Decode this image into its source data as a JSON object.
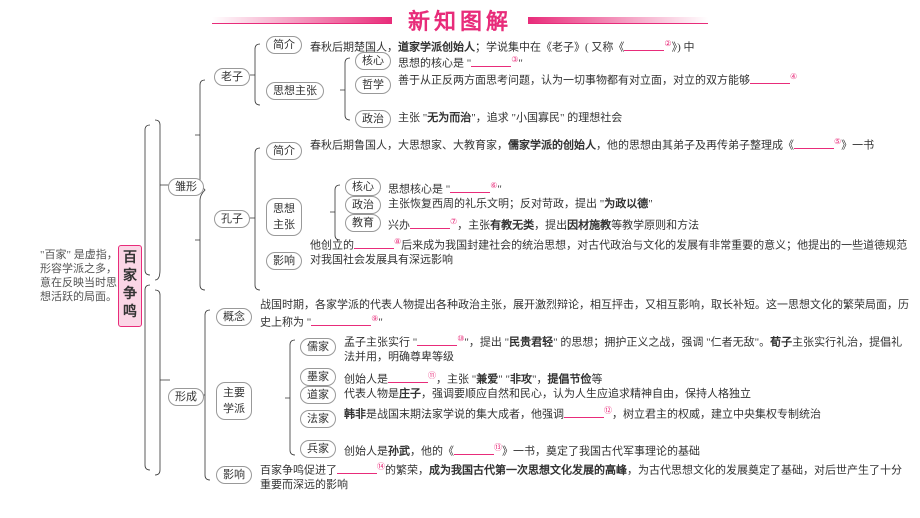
{
  "header": {
    "title": "新知图解"
  },
  "root": "百家争鸣",
  "side_note": "\"百家\" 是虚指，形容学派之多，意在反映当时思想活跃的局面。",
  "level1": {
    "brief": "简介",
    "embryo": "雏形",
    "formation": "形成",
    "laozi": "老子",
    "kongzi": "孔子",
    "thought": "思想主张",
    "core": "核心",
    "philo": "哲学",
    "politics": "政治",
    "edu": "教育",
    "influence": "影响",
    "concept": "概念",
    "schools": "主要学派",
    "ru": "儒家",
    "mo": "墨家",
    "dao": "道家",
    "fa": "法家",
    "bing": "兵家",
    "thought2": "思想主张"
  },
  "text": {
    "lz_brief": "春秋后期楚国人，<span class='em'>道家学派创始人</span>；学说集中在《老子》( 又称《<span class='blank'></span><span class='sup'>②</span>》) 中",
    "lz_core": "思想的核心是 \"<span class='blank'></span><span class='sup'>③</span>\"",
    "lz_philo": "善于从正反两方面思考问题，认为一切事物都有对立面，对立的双方能够<span class='blank'></span><span class='sup'>④</span>",
    "lz_pol": "主张 \"<span class='em'>无为而治</span>\"，追求 \"小国寡民\" 的理想社会",
    "kz_brief": "春秋后期鲁国人，大思想家、大教育家，<span class='em'>儒家学派的创始人</span>，他的思想由其弟子及再传弟子整理成《<span class='blank'></span><span class='sup'>⑤</span>》一书",
    "kz_core": "思想核心是 \"<span class='blank'></span><span class='sup'>⑥</span>\"",
    "kz_pol": "主张恢复西周的礼乐文明；反对苛政，提出 \"<span class='em'>为政以德</span>\"",
    "kz_edu": "兴办<span class='blank'></span><span class='sup'>⑦</span>，主张<span class='em'>有教无类</span>，提出<span class='em'>因材施教</span>等教学原则和方法",
    "kz_inf": "他创立的<span class='blank'></span><span class='sup'>⑧</span>后来成为我国封建社会的统治思想，对古代政治与文化的发展有非常重要的意义；他提出的一些道德规范对我国社会发展具有深远影响",
    "concept_txt": "战国时期，各家学派的代表人物提出各种政治主张，展开激烈辩论，相互抨击，又相互影响，取长补短。这一思想文化的繁荣局面，历史上称为 \"<span class='blank' style='min-width:60px'></span><span class='sup'>⑨</span>\"",
    "ru_txt": "孟子主张实行 \"<span class='blank'></span><span class='sup'>⑩</span>\"，提出 \"<span class='em'>民贵君轻</span>\" 的思想；拥护正义之战，强调 \"仁者无敌\"。<span class='em'>荀子</span>主张实行礼治，提倡礼法并用，明确尊卑等级",
    "mo_txt": "创始人是<span class='blank'></span><span class='sup'>⑪</span>，主张 \"<span class='em'>兼爱</span>\" \"<span class='em'>非攻</span>\"，<span class='em'>提倡节俭</span>等",
    "dao_txt": "代表人物是<span class='em'>庄子</span>，强调要顺应自然和民心，认为人生应追求精神自由，保持人格独立",
    "fa_txt": "<span class='em'>韩非</span>是战国末期法家学说的集大成者，他强调<span class='blank'></span><span class='sup'>⑫</span>，树立君主的权威，建立中央集权专制统治",
    "bing_txt": "创始人是<span class='em'>孙武</span>，他的《<span class='blank'></span><span class='sup'>⑬</span>》一书，奠定了我国古代军事理论的基础",
    "inf_txt": "百家争鸣促进了<span class='blank'></span><span class='sup'>⑭</span>的繁荣，<span class='em'>成为我国古代第一次思想文化发展的高峰</span>，为古代思想文化的发展奠定了基础，对后世产生了十分重要而深远的影响"
  },
  "style": {
    "accent": "#e82c7a",
    "bg": "#ffffff",
    "bracket_color": "#333333",
    "font_size_body": 11,
    "font_size_title": 22
  }
}
